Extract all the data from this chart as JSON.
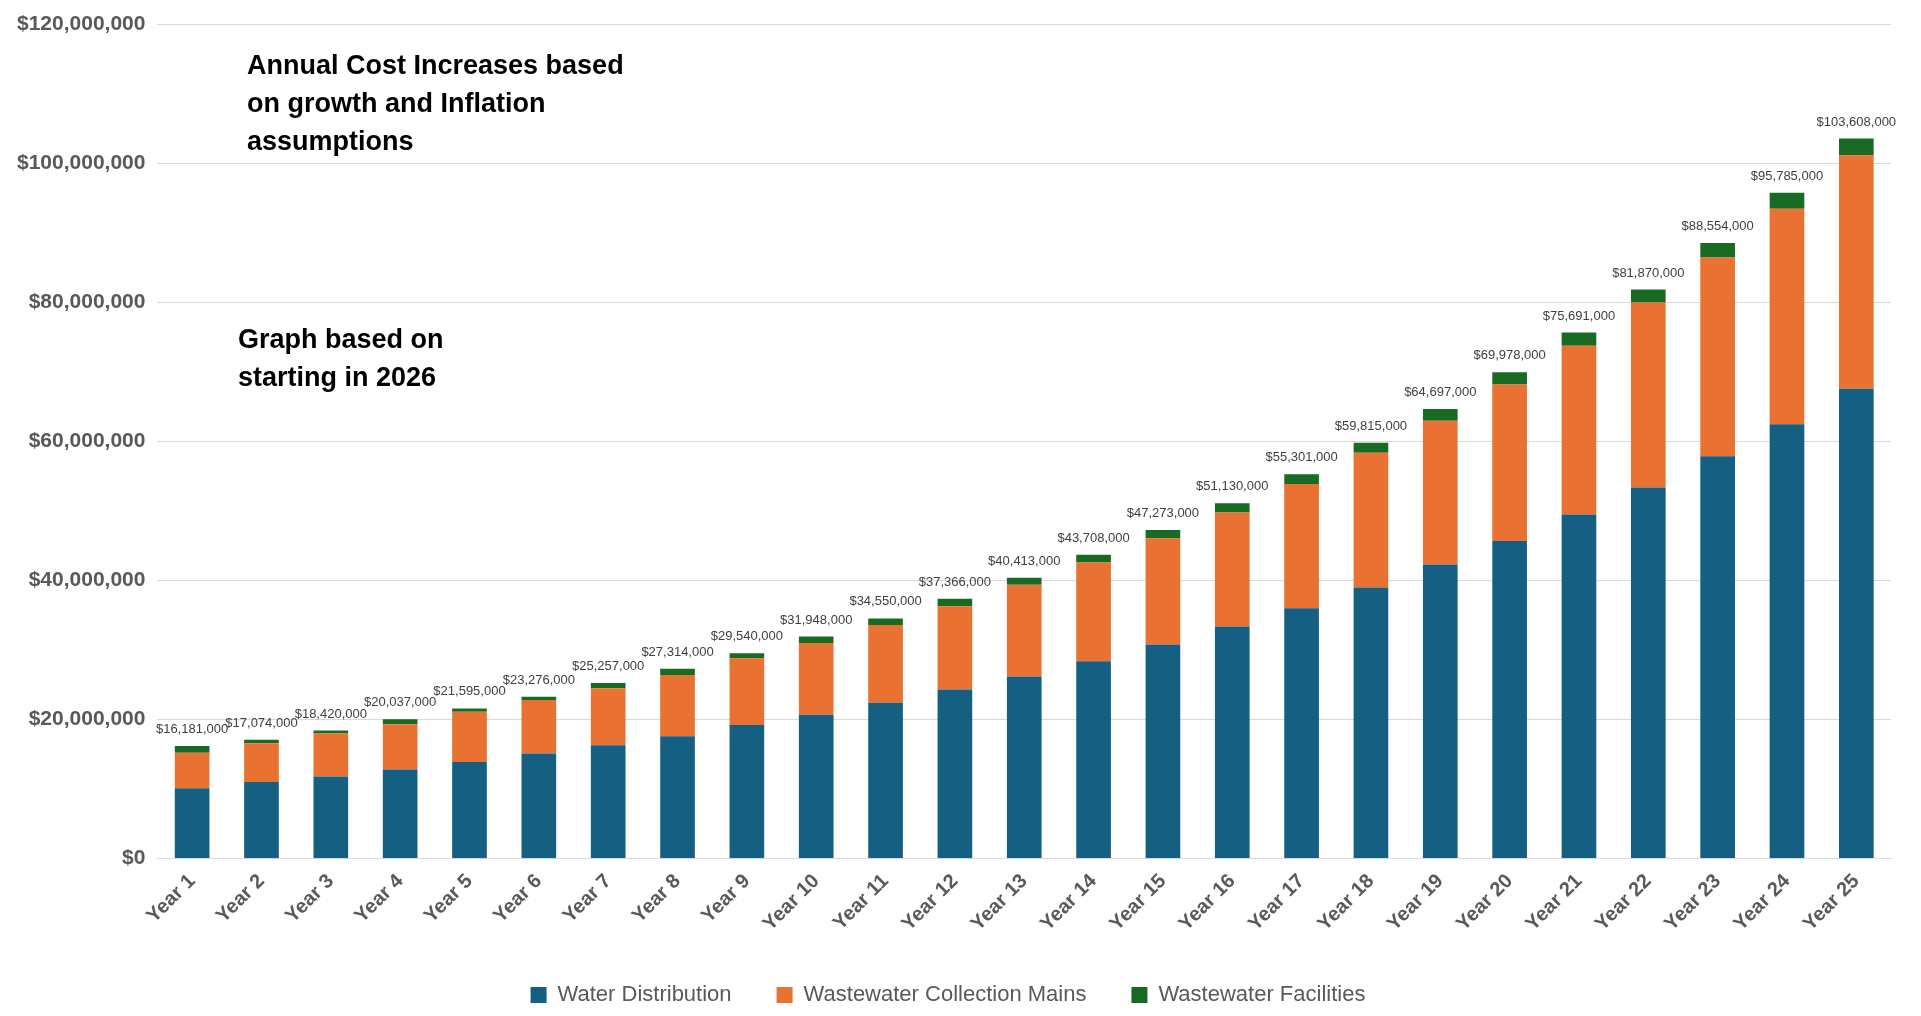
{
  "chart_data": {
    "type": "bar",
    "stacked": true,
    "categories": [
      "Year 1",
      "Year 2",
      "Year 3",
      "Year 4",
      "Year 5",
      "Year 6",
      "Year 7",
      "Year 8",
      "Year 9",
      "Year 10",
      "Year 11",
      "Year 12",
      "Year 13",
      "Year 14",
      "Year 15",
      "Year 16",
      "Year 17",
      "Year 18",
      "Year 19",
      "Year 20",
      "Year 21",
      "Year 22",
      "Year 23",
      "Year 24",
      "Year 25"
    ],
    "series": [
      {
        "name": "Water Distribution",
        "color": "#156082",
        "values": [
          10100000,
          11000000,
          11800000,
          12800000,
          13900000,
          15100000,
          16300000,
          17600000,
          19200000,
          20700000,
          22400000,
          24300000,
          26200000,
          28400000,
          30800000,
          33400000,
          36000000,
          39000000,
          42300000,
          45700000,
          49500000,
          53400000,
          57900000,
          62500000,
          67600000
        ]
      },
      {
        "name": "Wastewater Collection Mains",
        "color": "#e97132",
        "values": [
          5100000,
          5600000,
          6200000,
          6500000,
          7200000,
          7700000,
          8200000,
          8800000,
          9600000,
          10300000,
          11200000,
          12000000,
          13200000,
          14200000,
          15300000,
          16400000,
          17900000,
          19400000,
          20700000,
          22500000,
          24300000,
          26600000,
          28600000,
          31000000,
          33600000
        ]
      },
      {
        "name": "Wastewater Facilities",
        "color": "#196b24",
        "values": [
          981000,
          474000,
          420000,
          737000,
          495000,
          476000,
          757000,
          914000,
          740000,
          948000,
          950000,
          1066000,
          1013000,
          1108000,
          1173000,
          1330000,
          1401000,
          1415000,
          1697000,
          1778000,
          1891000,
          1870000,
          2054000,
          2285000,
          2408000
        ]
      }
    ],
    "totals": [
      "$16,181,000",
      "$17,074,000",
      "$18,420,000",
      "$20,037,000",
      "$21,595,000",
      "$23,276,000",
      "$25,257,000",
      "$27,314,000",
      "$29,540,000",
      "$31,948,000",
      "$34,550,000",
      "$37,366,000",
      "$40,413,000",
      "$43,708,000",
      "$47,273,000",
      "$51,130,000",
      "$55,301,000",
      "$59,815,000",
      "$64,697,000",
      "$69,978,000",
      "$75,691,000",
      "$81,870,000",
      "$88,554,000",
      "$95,785,000",
      "$103,608,000"
    ],
    "ylim": [
      0,
      120000000
    ],
    "yticks": [
      {
        "value": 0,
        "label": "$0"
      },
      {
        "value": 20000000,
        "label": "$20,000,000"
      },
      {
        "value": 40000000,
        "label": "$40,000,000"
      },
      {
        "value": 60000000,
        "label": "$60,000,000"
      },
      {
        "value": 80000000,
        "label": "$80,000,000"
      },
      {
        "value": 100000000,
        "label": "$100,000,000"
      },
      {
        "value": 120000000,
        "label": "$120,000,000"
      }
    ],
    "grid": "y",
    "legend": "bottom",
    "annotations": [
      "Annual Cost Increases based on growth and Inflation assumptions",
      "Graph based on starting in 2026"
    ]
  }
}
